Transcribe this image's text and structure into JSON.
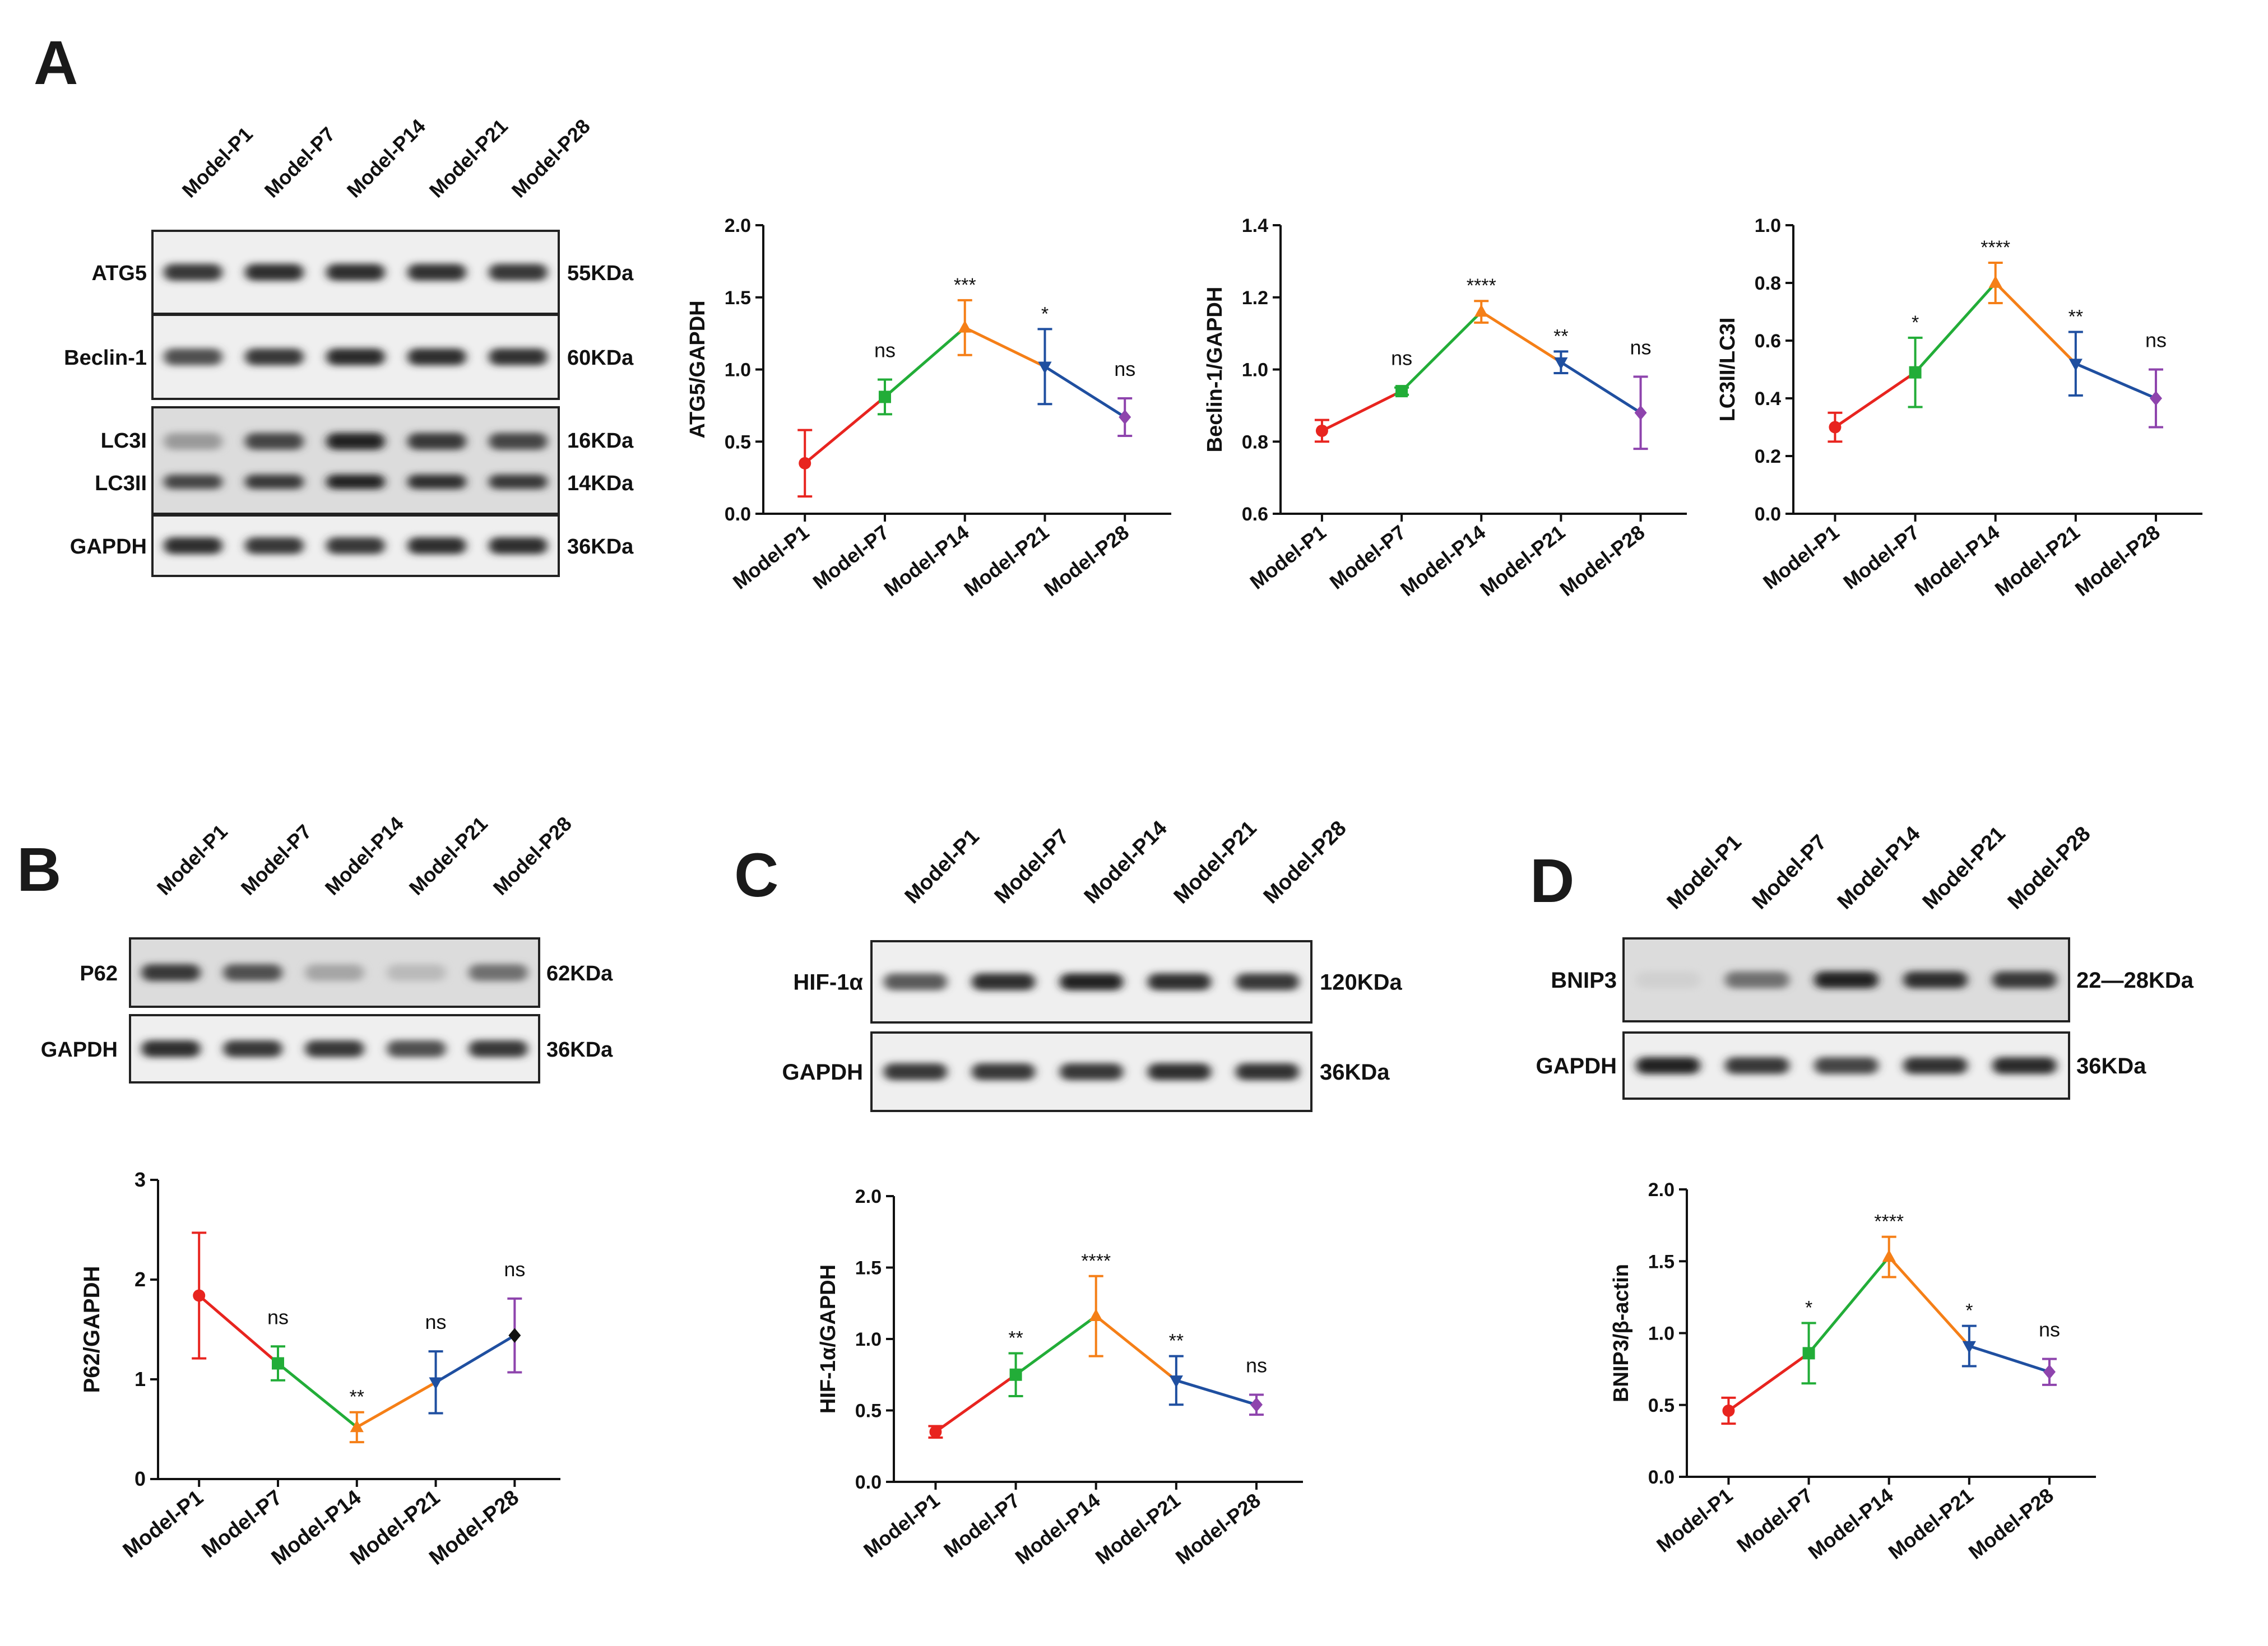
{
  "panels": [
    {
      "letter": "A"
    },
    {
      "letter": "B"
    },
    {
      "letter": "C"
    },
    {
      "letter": "D"
    }
  ],
  "lanes": [
    "Model-P1",
    "Model-P7",
    "Model-P14",
    "Model-P21",
    "Model-P28"
  ],
  "series_colors": [
    "#e8241f",
    "#22ad38",
    "#f57f17",
    "#1f4fa0",
    "#8e44ad"
  ],
  "blots": {
    "A": {
      "rows": [
        {
          "label": "ATG5",
          "size": "55KDa",
          "intensity": [
            0.85,
            0.9,
            0.9,
            0.88,
            0.85
          ]
        },
        {
          "label": "Beclin-1",
          "size": "60KDa",
          "intensity": [
            0.75,
            0.85,
            0.92,
            0.9,
            0.88
          ]
        },
        {
          "label": "LC3I",
          "label2": "LC3II",
          "size": "16KDa",
          "size2": "14KDa",
          "intensity": [
            0.4,
            0.8,
            0.95,
            0.85,
            0.8
          ],
          "intensity2": [
            0.8,
            0.85,
            0.95,
            0.9,
            0.85
          ]
        },
        {
          "label": "GAPDH",
          "size": "36KDa",
          "intensity": [
            0.9,
            0.85,
            0.85,
            0.9,
            0.9
          ]
        }
      ]
    },
    "B": {
      "rows": [
        {
          "label": "P62",
          "size": "62KDa",
          "intensity": [
            0.85,
            0.75,
            0.35,
            0.25,
            0.6
          ]
        },
        {
          "label": "GAPDH",
          "size": "36KDa",
          "intensity": [
            0.9,
            0.85,
            0.85,
            0.75,
            0.85
          ]
        }
      ]
    },
    "C": {
      "rows": [
        {
          "label": "HIF-1α",
          "size": "120KDa",
          "intensity": [
            0.7,
            0.9,
            0.95,
            0.9,
            0.85
          ]
        },
        {
          "label": "GAPDH",
          "size": "36KDa",
          "intensity": [
            0.85,
            0.85,
            0.85,
            0.9,
            0.88
          ]
        }
      ]
    },
    "D": {
      "rows": [
        {
          "label": "BNIP3",
          "size": "22—28KDa",
          "intensity": [
            0.15,
            0.6,
            0.95,
            0.9,
            0.85
          ]
        },
        {
          "label": "GAPDH",
          "size": "36KDa",
          "intensity": [
            0.95,
            0.85,
            0.8,
            0.88,
            0.92
          ]
        }
      ]
    }
  },
  "chart_data": [
    {
      "id": "atg5",
      "type": "line",
      "ylabel": "ATG5/GAPDH",
      "categories": [
        "Model-P1",
        "Model-P7",
        "Model-P14",
        "Model-P21",
        "Model-P28"
      ],
      "values": [
        0.35,
        0.81,
        1.29,
        1.02,
        0.67
      ],
      "errors": [
        0.23,
        0.12,
        0.19,
        0.26,
        0.13
      ],
      "sig": [
        "",
        "ns",
        "***",
        "*",
        "ns"
      ],
      "ylim": [
        0,
        2.0
      ],
      "yticks": [
        "0.0",
        "0.5",
        "1.0",
        "1.5",
        "2.0"
      ]
    },
    {
      "id": "beclin",
      "type": "line",
      "ylabel": "Beclin-1/GAPDH",
      "categories": [
        "Model-P1",
        "Model-P7",
        "Model-P14",
        "Model-P21",
        "Model-P28"
      ],
      "values": [
        0.83,
        0.94,
        1.16,
        1.02,
        0.88
      ],
      "errors": [
        0.03,
        0.01,
        0.03,
        0.03,
        0.1
      ],
      "sig": [
        "",
        "ns",
        "****",
        "**",
        "ns"
      ],
      "ylim": [
        0.6,
        1.4
      ],
      "yticks": [
        "0.6",
        "0.8",
        "1.0",
        "1.2",
        "1.4"
      ]
    },
    {
      "id": "lc3",
      "type": "line",
      "ylabel": "LC3II/LC3I",
      "categories": [
        "Model-P1",
        "Model-P7",
        "Model-P14",
        "Model-P21",
        "Model-P28"
      ],
      "values": [
        0.3,
        0.49,
        0.8,
        0.52,
        0.4
      ],
      "errors": [
        0.05,
        0.12,
        0.07,
        0.11,
        0.1
      ],
      "sig": [
        "",
        "*",
        "****",
        "**",
        "ns"
      ],
      "ylim": [
        0,
        1.0
      ],
      "yticks": [
        "0.0",
        "0.2",
        "0.4",
        "0.6",
        "0.8",
        "1.0"
      ]
    },
    {
      "id": "p62",
      "type": "line",
      "ylabel": "P62/GAPDH",
      "categories": [
        "Model-P1",
        "Model-P7",
        "Model-P14",
        "Model-P21",
        "Model-P28"
      ],
      "values": [
        1.84,
        1.16,
        0.52,
        0.97,
        1.44
      ],
      "errors": [
        0.63,
        0.17,
        0.15,
        0.31,
        0.37
      ],
      "sig": [
        "",
        "ns",
        "**",
        "ns",
        "ns"
      ],
      "ylim": [
        0,
        3
      ],
      "yticks": [
        "0",
        "1",
        "2",
        "3"
      ]
    },
    {
      "id": "hif",
      "type": "line",
      "ylabel": "HIF-1α/GAPDH",
      "categories": [
        "Model-P1",
        "Model-P7",
        "Model-P14",
        "Model-P21",
        "Model-P28"
      ],
      "values": [
        0.35,
        0.75,
        1.16,
        0.71,
        0.54
      ],
      "errors": [
        0.04,
        0.15,
        0.28,
        0.17,
        0.07
      ],
      "sig": [
        "",
        "**",
        "****",
        "**",
        "ns"
      ],
      "ylim": [
        0,
        2.0
      ],
      "yticks": [
        "0.0",
        "0.5",
        "1.0",
        "1.5",
        "2.0"
      ]
    },
    {
      "id": "bnip3",
      "type": "line",
      "ylabel": "BNIP3/β-actin",
      "categories": [
        "Model-P1",
        "Model-P7",
        "Model-P14",
        "Model-P21",
        "Model-P28"
      ],
      "values": [
        0.46,
        0.86,
        1.53,
        0.91,
        0.73
      ],
      "errors": [
        0.09,
        0.21,
        0.14,
        0.14,
        0.09
      ],
      "sig": [
        "",
        "*",
        "****",
        "*",
        "ns"
      ],
      "ylim": [
        0,
        2.0
      ],
      "yticks": [
        "0.0",
        "0.5",
        "1.0",
        "1.5",
        "2.0"
      ]
    }
  ]
}
